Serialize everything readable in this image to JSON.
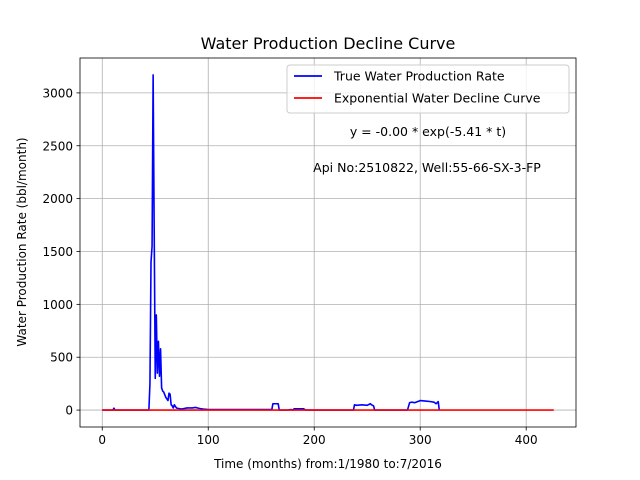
{
  "chart_data": {
    "type": "line",
    "title": "Water Production Decline Curve",
    "xlabel": "Time (months) from:1/1980 to:7/2016",
    "ylabel": "Water Production Rate (bbl/month)",
    "xlim": [
      -21,
      447
    ],
    "ylim": [
      -160,
      3330
    ],
    "xticks": [
      0,
      100,
      200,
      300,
      400
    ],
    "yticks": [
      0,
      500,
      1000,
      1500,
      2000,
      2500,
      3000
    ],
    "grid": true,
    "legend_position": "top-right",
    "annotations": [
      "y = -0.00 * exp(-5.41 * t)",
      "Api No:2510822, Well:55-66-SX-3-FP"
    ],
    "series": [
      {
        "name": "True Water Production Rate",
        "color": "#0000ff",
        "x": [
          0,
          10,
          11,
          12,
          13,
          44,
          45,
          46,
          47,
          48,
          49,
          50,
          51,
          52,
          53,
          54,
          55,
          56,
          57,
          58,
          60,
          62,
          63,
          64,
          65,
          66,
          67,
          68,
          70,
          72,
          75,
          80,
          85,
          88,
          90,
          92,
          95,
          100,
          110,
          140,
          160,
          161,
          162,
          166,
          167,
          168,
          175,
          178,
          180,
          181,
          185,
          190,
          192,
          230,
          237,
          238,
          240,
          245,
          250,
          252,
          253,
          254,
          255,
          256,
          257,
          288,
          290,
          292,
          295,
          300,
          305,
          310,
          313,
          315,
          316,
          317,
          318
        ],
        "values": [
          0,
          0,
          18,
          0,
          0,
          0,
          250,
          1400,
          1550,
          3170,
          1700,
          300,
          900,
          350,
          650,
          320,
          580,
          210,
          180,
          170,
          120,
          90,
          160,
          150,
          50,
          40,
          20,
          50,
          20,
          15,
          10,
          20,
          20,
          25,
          20,
          15,
          10,
          5,
          5,
          5,
          5,
          60,
          60,
          60,
          0,
          0,
          0,
          5,
          0,
          12,
          12,
          12,
          0,
          0,
          0,
          50,
          45,
          50,
          45,
          55,
          60,
          50,
          45,
          40,
          0,
          0,
          70,
          75,
          70,
          90,
          85,
          80,
          75,
          60,
          70,
          80,
          0
        ]
      },
      {
        "name": "Exponential Water Decline Curve",
        "color": "#ff0000",
        "x": [
          0,
          426
        ],
        "values": [
          0,
          0
        ]
      }
    ]
  }
}
